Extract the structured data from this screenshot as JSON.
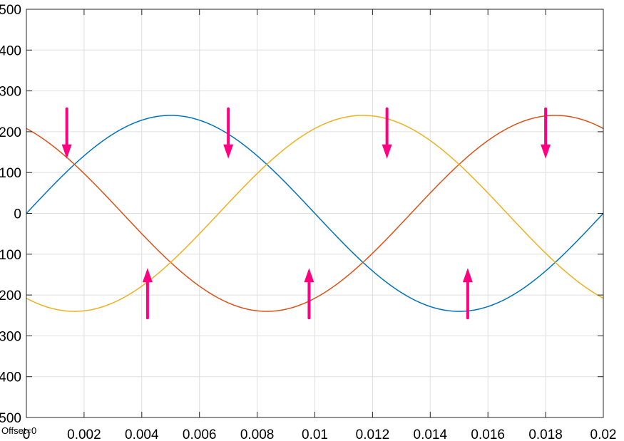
{
  "chart_data": {
    "type": "line",
    "title": "",
    "xlabel": "",
    "ylabel": "",
    "xlim": [
      0,
      0.02
    ],
    "ylim": [
      -500,
      500
    ],
    "grid": true,
    "legend": "none",
    "x_ticks": [
      "0",
      "0.002",
      "0.004",
      "0.006",
      "0.008",
      "0.01",
      "0.012",
      "0.014",
      "0.016",
      "0.018",
      "0.02"
    ],
    "y_ticks": [
      "500",
      "400",
      "300",
      "200",
      "100",
      "0",
      "-100",
      "-200",
      "-300",
      "-400",
      "-500"
    ],
    "offset_text": "Offset=0",
    "series": [
      {
        "color": "#0072BD",
        "amplitude": 240,
        "frequency_hz": 50,
        "phase_deg": 0
      },
      {
        "color": "#D95319",
        "amplitude": 240,
        "frequency_hz": 50,
        "phase_deg": 120
      },
      {
        "color": "#EDB120",
        "amplitude": 240,
        "frequency_hz": 50,
        "phase_deg": -120
      }
    ],
    "annotations": {
      "type": "arrow",
      "color": "#FF0080",
      "points": [
        {
          "x": 0.0014,
          "y": 120
        },
        {
          "x": 0.0042,
          "y": -120
        },
        {
          "x": 0.007,
          "y": 120
        },
        {
          "x": 0.0098,
          "y": -120
        },
        {
          "x": 0.0125,
          "y": 120
        },
        {
          "x": 0.0153,
          "y": -120
        },
        {
          "x": 0.018,
          "y": 120
        }
      ]
    }
  }
}
